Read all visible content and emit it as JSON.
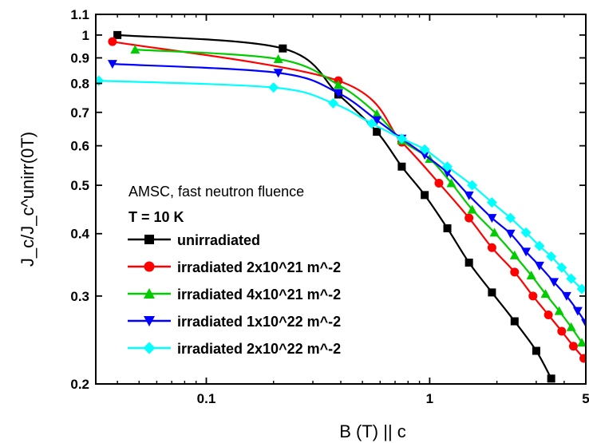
{
  "chart_data": {
    "type": "line",
    "title": "",
    "xlabel": "B (T) || c",
    "ylabel": "J_c/J_c^unirr(0T)",
    "x_scale": "log",
    "y_scale": "log",
    "xlim": [
      0.032,
      5
    ],
    "ylim": [
      0.2,
      1.1
    ],
    "x_ticks": [
      {
        "value": 0.1,
        "label": "0.1"
      },
      {
        "value": 1,
        "label": "1"
      },
      {
        "value": 5,
        "label": "5"
      }
    ],
    "y_ticks": [
      {
        "value": 0.2,
        "label": "0.2"
      },
      {
        "value": 0.3,
        "label": "0.3"
      },
      {
        "value": 0.4,
        "label": "0.4"
      },
      {
        "value": 0.5,
        "label": "0.5"
      },
      {
        "value": 0.6,
        "label": "0.6"
      },
      {
        "value": 0.7,
        "label": "0.7"
      },
      {
        "value": 0.8,
        "label": "0.8"
      },
      {
        "value": 0.9,
        "label": "0.9"
      },
      {
        "value": 1,
        "label": "1"
      },
      {
        "value": 1.1,
        "label": "1.1"
      }
    ],
    "legend_position": "lower-left",
    "legend_header": [
      "AMSC, fast neutron fluence",
      "T = 10 K"
    ],
    "series": [
      {
        "name": "unirradiated",
        "color": "#000000",
        "marker": "square",
        "x": [
          0.04,
          0.22,
          0.39,
          0.58,
          0.75,
          0.95,
          1.2,
          1.5,
          1.9,
          2.4,
          3.0,
          3.5
        ],
        "y": [
          1.0,
          0.94,
          0.76,
          0.64,
          0.545,
          0.478,
          0.41,
          0.35,
          0.305,
          0.267,
          0.233,
          0.205
        ]
      },
      {
        "name": "irradiated 2x10^21 m^-2",
        "color": "#ff0000",
        "marker": "circle",
        "x": [
          0.038,
          0.39,
          0.75,
          1.1,
          1.5,
          1.9,
          2.4,
          2.9,
          3.4,
          3.9,
          4.4,
          4.9
        ],
        "y": [
          0.97,
          0.81,
          0.61,
          0.505,
          0.43,
          0.375,
          0.335,
          0.3,
          0.275,
          0.255,
          0.238,
          0.225
        ]
      },
      {
        "name": "irradiated 4x10^21 m^-2",
        "color": "#00cc00",
        "marker": "triangle-up",
        "x": [
          0.048,
          0.21,
          0.39,
          0.58,
          0.75,
          1.0,
          1.25,
          1.55,
          1.95,
          2.4,
          2.85,
          3.3,
          3.8,
          4.3,
          4.8
        ],
        "y": [
          0.935,
          0.895,
          0.795,
          0.695,
          0.615,
          0.565,
          0.505,
          0.447,
          0.402,
          0.362,
          0.33,
          0.303,
          0.28,
          0.26,
          0.242
        ]
      },
      {
        "name": "irradiated 1x10^22 m^-2",
        "color": "#0000ff",
        "marker": "triangle-down",
        "x": [
          0.038,
          0.21,
          0.39,
          0.58,
          0.75,
          0.95,
          1.2,
          1.5,
          1.9,
          2.3,
          2.7,
          3.1,
          3.6,
          4.1,
          4.6,
          5.0
        ],
        "y": [
          0.875,
          0.84,
          0.765,
          0.675,
          0.62,
          0.575,
          0.53,
          0.477,
          0.43,
          0.4,
          0.368,
          0.345,
          0.32,
          0.3,
          0.28,
          0.265
        ]
      },
      {
        "name": "irradiated 2x10^22 m^-2",
        "color": "#00ffff",
        "marker": "diamond",
        "x": [
          0.033,
          0.2,
          0.37,
          0.55,
          0.75,
          0.95,
          1.2,
          1.55,
          1.9,
          2.3,
          2.7,
          3.1,
          3.5,
          3.9,
          4.3,
          4.8
        ],
        "y": [
          0.81,
          0.785,
          0.73,
          0.665,
          0.62,
          0.59,
          0.545,
          0.5,
          0.462,
          0.43,
          0.402,
          0.378,
          0.36,
          0.342,
          0.325,
          0.31
        ]
      }
    ]
  }
}
